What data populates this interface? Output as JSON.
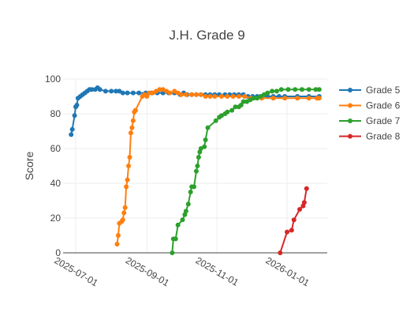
{
  "chart_data": {
    "type": "line",
    "title": "J.H. Grade 9",
    "xlabel": "",
    "ylabel": "Score",
    "ylim": [
      0,
      100
    ],
    "xlim": [
      "2025-06-20",
      "2026-02-05"
    ],
    "yticks": [
      0,
      20,
      40,
      60,
      80,
      100
    ],
    "xticks": [
      "2025-07-01",
      "2025-09-01",
      "2025-11-01",
      "2026-01-01"
    ],
    "grid": true,
    "legend_position": "right",
    "series": [
      {
        "name": "Grade 5",
        "color": "#1f77b4",
        "points": [
          [
            "2025-06-27",
            68
          ],
          [
            "2025-06-28",
            71
          ],
          [
            "2025-06-30",
            79
          ],
          [
            "2025-07-01",
            84
          ],
          [
            "2025-07-02",
            85
          ],
          [
            "2025-07-03",
            89
          ],
          [
            "2025-07-05",
            90
          ],
          [
            "2025-07-07",
            91
          ],
          [
            "2025-07-09",
            92
          ],
          [
            "2025-07-11",
            93
          ],
          [
            "2025-07-13",
            94
          ],
          [
            "2025-07-15",
            94
          ],
          [
            "2025-07-18",
            94
          ],
          [
            "2025-07-20",
            95
          ],
          [
            "2025-07-22",
            94
          ],
          [
            "2025-07-27",
            93
          ],
          [
            "2025-08-01",
            93
          ],
          [
            "2025-08-05",
            93
          ],
          [
            "2025-08-08",
            93
          ],
          [
            "2025-08-11",
            92
          ],
          [
            "2025-08-15",
            92
          ],
          [
            "2025-08-20",
            92
          ],
          [
            "2025-08-25",
            92
          ],
          [
            "2025-08-31",
            92
          ],
          [
            "2025-09-05",
            92
          ],
          [
            "2025-09-10",
            92
          ],
          [
            "2025-09-15",
            92
          ],
          [
            "2025-09-20",
            92
          ],
          [
            "2025-09-25",
            92
          ],
          [
            "2025-09-30",
            91
          ],
          [
            "2025-10-03",
            92
          ],
          [
            "2025-10-06",
            91
          ],
          [
            "2025-10-10",
            91
          ],
          [
            "2025-10-14",
            91
          ],
          [
            "2025-10-18",
            91
          ],
          [
            "2025-10-22",
            91
          ],
          [
            "2025-10-26",
            91
          ],
          [
            "2025-10-30",
            91
          ],
          [
            "2025-11-03",
            91
          ],
          [
            "2025-11-08",
            91
          ],
          [
            "2025-11-12",
            91
          ],
          [
            "2025-11-16",
            91
          ],
          [
            "2025-11-20",
            91
          ],
          [
            "2025-11-24",
            91
          ],
          [
            "2025-11-28",
            90
          ],
          [
            "2025-12-02",
            90
          ],
          [
            "2025-12-06",
            90
          ],
          [
            "2025-12-10",
            90
          ],
          [
            "2025-12-15",
            90
          ],
          [
            "2025-12-20",
            90
          ],
          [
            "2025-12-25",
            90
          ],
          [
            "2025-12-30",
            90
          ],
          [
            "2026-01-10",
            90
          ],
          [
            "2026-01-20",
            90
          ],
          [
            "2026-01-29",
            90
          ]
        ]
      },
      {
        "name": "Grade 6",
        "color": "#ff7f0e",
        "points": [
          [
            "2025-08-06",
            5
          ],
          [
            "2025-08-07",
            10
          ],
          [
            "2025-08-08",
            17
          ],
          [
            "2025-08-10",
            18
          ],
          [
            "2025-08-11",
            19
          ],
          [
            "2025-08-12",
            23
          ],
          [
            "2025-08-13",
            26
          ],
          [
            "2025-08-14",
            38
          ],
          [
            "2025-08-15",
            42
          ],
          [
            "2025-08-16",
            50
          ],
          [
            "2025-08-17",
            55
          ],
          [
            "2025-08-18",
            69
          ],
          [
            "2025-08-19",
            72
          ],
          [
            "2025-08-20",
            76
          ],
          [
            "2025-08-21",
            81
          ],
          [
            "2025-08-22",
            82
          ],
          [
            "2025-08-28",
            90
          ],
          [
            "2025-08-30",
            91
          ],
          [
            "2025-09-01",
            90
          ],
          [
            "2025-09-03",
            92
          ],
          [
            "2025-09-06",
            92
          ],
          [
            "2025-09-09",
            93
          ],
          [
            "2025-09-12",
            94
          ],
          [
            "2025-09-15",
            94
          ],
          [
            "2025-09-18",
            93
          ],
          [
            "2025-09-21",
            92
          ],
          [
            "2025-09-25",
            93
          ],
          [
            "2025-09-28",
            92
          ],
          [
            "2025-10-01",
            91
          ],
          [
            "2025-10-05",
            91
          ],
          [
            "2025-10-10",
            91
          ],
          [
            "2025-10-14",
            91
          ],
          [
            "2025-10-18",
            91
          ],
          [
            "2025-10-22",
            90
          ],
          [
            "2025-10-26",
            90
          ],
          [
            "2025-10-30",
            90
          ],
          [
            "2025-11-05",
            90
          ],
          [
            "2025-11-10",
            90
          ],
          [
            "2025-11-15",
            90
          ],
          [
            "2025-11-20",
            90
          ],
          [
            "2025-11-25",
            90
          ],
          [
            "2025-12-01",
            89
          ],
          [
            "2025-12-10",
            89
          ],
          [
            "2025-12-20",
            89
          ],
          [
            "2025-12-30",
            89
          ],
          [
            "2026-01-10",
            89
          ],
          [
            "2026-01-20",
            89
          ],
          [
            "2026-01-27",
            89
          ],
          [
            "2026-01-29",
            89
          ]
        ]
      },
      {
        "name": "Grade 7",
        "color": "#2ca02c",
        "points": [
          [
            "2025-09-23",
            0
          ],
          [
            "2025-09-24",
            8
          ],
          [
            "2025-09-26",
            8
          ],
          [
            "2025-09-28",
            16
          ],
          [
            "2025-10-02",
            19
          ],
          [
            "2025-10-04",
            22
          ],
          [
            "2025-10-05",
            24
          ],
          [
            "2025-10-07",
            28
          ],
          [
            "2025-10-09",
            35
          ],
          [
            "2025-10-10",
            38
          ],
          [
            "2025-10-12",
            38
          ],
          [
            "2025-10-14",
            47
          ],
          [
            "2025-10-15",
            50
          ],
          [
            "2025-10-16",
            55
          ],
          [
            "2025-10-17",
            58
          ],
          [
            "2025-10-18",
            60
          ],
          [
            "2025-10-21",
            61
          ],
          [
            "2025-10-22",
            65
          ],
          [
            "2025-10-24",
            72
          ],
          [
            "2025-10-31",
            76
          ],
          [
            "2025-11-03",
            78
          ],
          [
            "2025-11-05",
            79
          ],
          [
            "2025-11-08",
            80
          ],
          [
            "2025-11-10",
            81
          ],
          [
            "2025-11-14",
            82
          ],
          [
            "2025-11-17",
            84
          ],
          [
            "2025-11-20",
            84
          ],
          [
            "2025-11-22",
            85
          ],
          [
            "2025-11-24",
            87
          ],
          [
            "2025-11-27",
            87
          ],
          [
            "2025-11-30",
            88
          ],
          [
            "2025-12-03",
            89
          ],
          [
            "2025-12-06",
            89
          ],
          [
            "2025-12-09",
            90
          ],
          [
            "2025-12-12",
            91
          ],
          [
            "2025-12-15",
            92
          ],
          [
            "2025-12-19",
            93
          ],
          [
            "2025-12-23",
            93
          ],
          [
            "2025-12-27",
            94
          ],
          [
            "2026-01-02",
            94
          ],
          [
            "2026-01-08",
            94
          ],
          [
            "2026-01-14",
            94
          ],
          [
            "2026-01-20",
            94
          ],
          [
            "2026-01-26",
            94
          ],
          [
            "2026-01-29",
            94
          ]
        ]
      },
      {
        "name": "Grade 8",
        "color": "#d62728",
        "points": [
          [
            "2025-12-26",
            0
          ],
          [
            "2026-01-01",
            12
          ],
          [
            "2026-01-05",
            13
          ],
          [
            "2026-01-07",
            19
          ],
          [
            "2026-01-12",
            25
          ],
          [
            "2026-01-15",
            27
          ],
          [
            "2026-01-16",
            29
          ],
          [
            "2026-01-18",
            37
          ]
        ]
      }
    ]
  }
}
